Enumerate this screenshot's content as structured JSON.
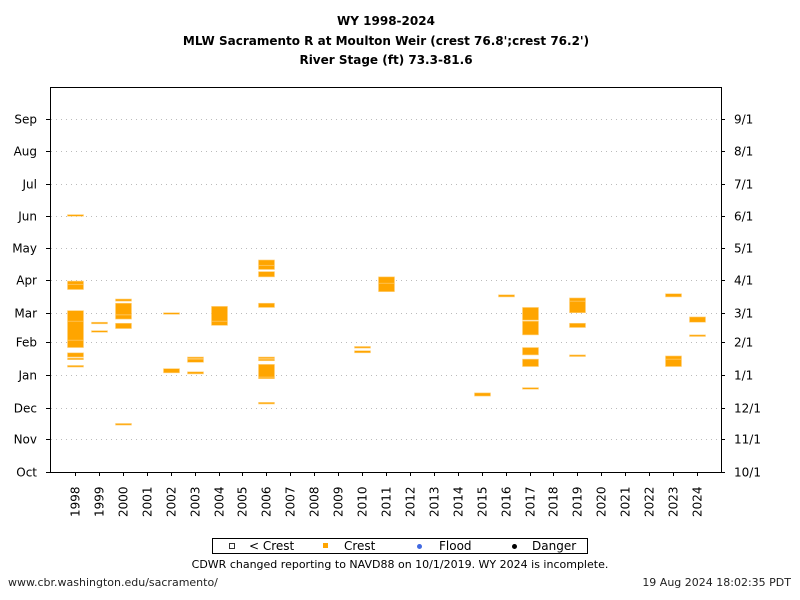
{
  "title": {
    "line1": "WY 1998-2024",
    "line2": "MLW Sacramento R at Moulton Weir (crest 76.8';crest 76.2')",
    "line3": "River Stage (ft) 73.3-81.6"
  },
  "legend": {
    "items": [
      {
        "label": "< Crest",
        "color": "#808080",
        "marker": "open-square"
      },
      {
        "label": "Crest",
        "color": "#ffa500",
        "marker": "square"
      },
      {
        "label": "Flood",
        "color": "#4169e1",
        "marker": "dot"
      },
      {
        "label": "Danger",
        "color": "#000000",
        "marker": "dot"
      }
    ]
  },
  "note": "CDWR changed reporting to NAVD88 on 10/1/2019. WY 2024 is incomplete.",
  "footer": {
    "left": "www.cbr.washington.edu/sacramento/",
    "right": "19 Aug 2024 18:02:35 PDT"
  },
  "chart_data": {
    "type": "bar",
    "x_categories": [
      "1998",
      "1999",
      "2000",
      "2001",
      "2002",
      "2003",
      "2004",
      "2005",
      "2006",
      "2007",
      "2008",
      "2009",
      "2010",
      "2011",
      "2012",
      "2013",
      "2014",
      "2015",
      "2016",
      "2017",
      "2018",
      "2019",
      "2020",
      "2021",
      "2022",
      "2023",
      "2024"
    ],
    "y_left_ticks": [
      "Oct",
      "Nov",
      "Dec",
      "Jan",
      "Feb",
      "Mar",
      "Apr",
      "May",
      "Jun",
      "Jul",
      "Aug",
      "Sep"
    ],
    "y_right_ticks": [
      "10/1",
      "11/1",
      "12/1",
      "1/1",
      "2/1",
      "3/1",
      "4/1",
      "5/1",
      "6/1",
      "7/1",
      "8/1",
      "9/1"
    ],
    "grid": true,
    "series_color": "#ffa500",
    "crest_periods": {
      "1998": [
        [
          "01-09",
          "01-09"
        ],
        [
          "01-16",
          "01-16"
        ],
        [
          "01-18",
          "01-21"
        ],
        [
          "01-27",
          "02-02"
        ],
        [
          "02-03",
          "02-20"
        ],
        [
          "02-21",
          "03-02"
        ],
        [
          "03-23",
          "03-27"
        ],
        [
          "03-28",
          "03-30"
        ],
        [
          "06-01",
          "06-01"
        ]
      ],
      "1999": [
        [
          "02-11",
          "02-11"
        ],
        [
          "02-19",
          "02-19"
        ]
      ],
      "2000": [
        [
          "11-15",
          "11-15"
        ],
        [
          "02-14",
          "02-18"
        ],
        [
          "02-23",
          "02-26"
        ],
        [
          "02-27",
          "03-09"
        ],
        [
          "03-12",
          "03-13"
        ]
      ],
      "2002": [
        [
          "01-03",
          "01-06"
        ],
        [
          "02-28",
          "02-28"
        ]
      ],
      "2003": [
        [
          "01-02",
          "01-03"
        ],
        [
          "01-13",
          "01-15"
        ],
        [
          "01-17",
          "01-17"
        ]
      ],
      "2004": [
        [
          "02-17",
          "02-20"
        ],
        [
          "02-21",
          "03-06"
        ]
      ],
      "2006": [
        [
          "12-05",
          "12-05"
        ],
        [
          "12-29",
          "12-29"
        ],
        [
          "12-30",
          "01-10"
        ],
        [
          "01-15",
          "01-15"
        ],
        [
          "01-17",
          "01-17"
        ],
        [
          "03-06",
          "03-09"
        ],
        [
          "04-04",
          "04-08"
        ],
        [
          "04-11",
          "04-14"
        ],
        [
          "04-15",
          "04-19"
        ]
      ],
      "2010": [
        [
          "01-22",
          "01-23"
        ],
        [
          "01-27",
          "01-27"
        ]
      ],
      "2011": [
        [
          "03-21",
          "03-28"
        ],
        [
          "03-29",
          "04-03"
        ]
      ],
      "2015": [
        [
          "12-12",
          "12-14"
        ]
      ],
      "2016": [
        [
          "03-16",
          "03-17"
        ]
      ],
      "2017": [
        [
          "12-19",
          "12-19"
        ],
        [
          "01-09",
          "01-15"
        ],
        [
          "01-20",
          "01-26"
        ],
        [
          "02-08",
          "02-20"
        ],
        [
          "02-22",
          "03-05"
        ]
      ],
      "2019": [
        [
          "01-19",
          "01-19"
        ],
        [
          "02-15",
          "02-18"
        ],
        [
          "03-01",
          "03-11"
        ],
        [
          "03-12",
          "03-14"
        ]
      ],
      "2023": [
        [
          "01-09",
          "01-15"
        ],
        [
          "01-16",
          "01-18"
        ],
        [
          "03-16",
          "03-18"
        ]
      ],
      "2024": [
        [
          "02-07",
          "02-07"
        ],
        [
          "02-20",
          "02-24"
        ]
      ]
    }
  }
}
